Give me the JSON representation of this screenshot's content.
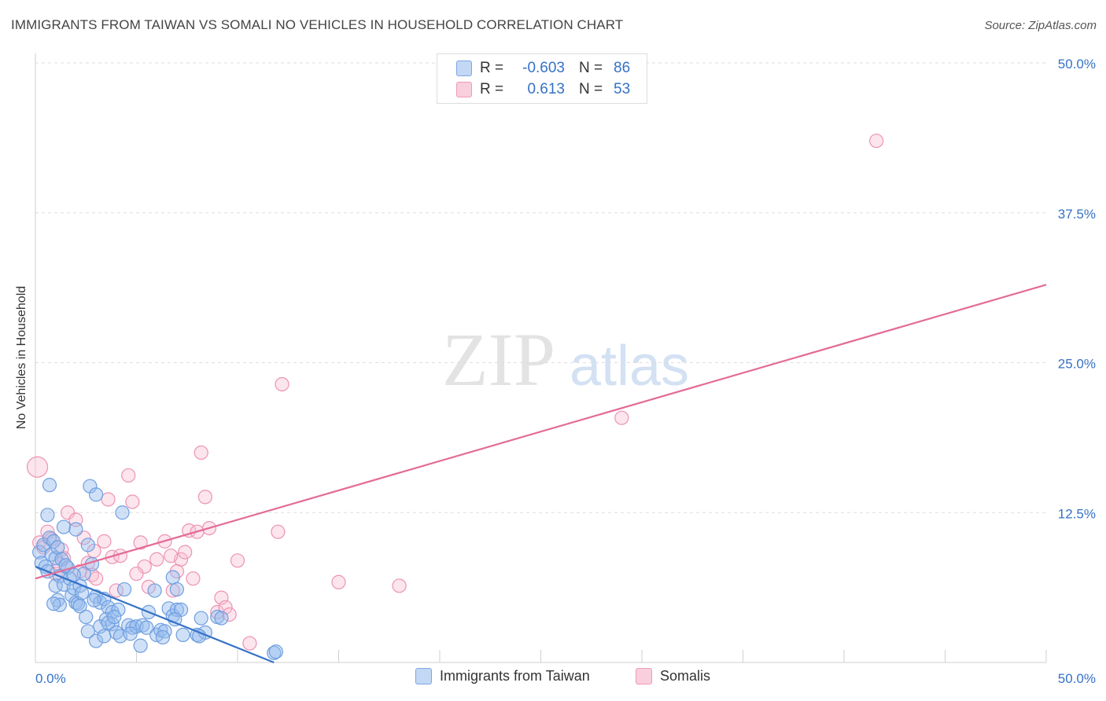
{
  "title": "IMMIGRANTS FROM TAIWAN VS SOMALI NO VEHICLES IN HOUSEHOLD CORRELATION CHART",
  "source": "Source: ZipAtlas.com",
  "watermark": {
    "zip": "ZIP",
    "atlas": "atlas"
  },
  "legend": {
    "rows": [
      {
        "r_label": "R =",
        "r_value": "-0.603",
        "n_label": "N =",
        "n_value": "86"
      },
      {
        "r_label": "R =",
        "r_value": "0.613",
        "n_label": "N =",
        "n_value": "53"
      }
    ]
  },
  "chart_data": {
    "type": "scatter",
    "title": "IMMIGRANTS FROM TAIWAN VS SOMALI NO VEHICLES IN HOUSEHOLD CORRELATION CHART",
    "xlabel": "",
    "ylabel": "No Vehicles in Household",
    "xlim": [
      0,
      50
    ],
    "ylim": [
      0,
      50
    ],
    "x_tick_labels": [
      "0.0%",
      "50.0%"
    ],
    "y_tick_labels": [
      "12.5%",
      "25.0%",
      "37.5%",
      "50.0%"
    ],
    "y_ticks": [
      12.5,
      25.0,
      37.5,
      50.0
    ],
    "grid": true,
    "legend_position": "bottom",
    "colors": {
      "taiwan": "#5b8fd9",
      "somalis": "#ee8fb0",
      "taiwan_line": "#3572c6",
      "somalis_line": "#e36b97",
      "axis_text": "#3572c6"
    },
    "series": [
      {
        "name": "Immigrants from Taiwan",
        "r": -0.603,
        "n": 86,
        "trend": {
          "x0": 0.0,
          "y0": 8.0,
          "x1": 11.8,
          "y1": 0.0
        },
        "points": [
          [
            0.2,
            9.2
          ],
          [
            0.3,
            8.3
          ],
          [
            0.4,
            9.8
          ],
          [
            0.5,
            8.0
          ],
          [
            0.6,
            7.6
          ],
          [
            0.7,
            10.4
          ],
          [
            0.8,
            9.0
          ],
          [
            0.6,
            12.3
          ],
          [
            0.7,
            14.8
          ],
          [
            0.9,
            10.1
          ],
          [
            1.0,
            8.7
          ],
          [
            1.1,
            9.6
          ],
          [
            1.2,
            7.2
          ],
          [
            1.3,
            8.6
          ],
          [
            1.0,
            6.4
          ],
          [
            1.1,
            5.2
          ],
          [
            1.2,
            4.8
          ],
          [
            1.4,
            6.5
          ],
          [
            1.4,
            11.3
          ],
          [
            1.6,
            7.9
          ],
          [
            1.7,
            7.0
          ],
          [
            1.8,
            5.6
          ],
          [
            1.9,
            6.2
          ],
          [
            2.0,
            5.0
          ],
          [
            2.1,
            4.9
          ],
          [
            2.2,
            6.4
          ],
          [
            2.0,
            11.1
          ],
          [
            2.2,
            4.7
          ],
          [
            2.4,
            7.4
          ],
          [
            2.6,
            9.8
          ],
          [
            2.8,
            8.2
          ],
          [
            3.0,
            5.5
          ],
          [
            2.5,
            3.8
          ],
          [
            2.7,
            14.7
          ],
          [
            3.0,
            14.0
          ],
          [
            3.2,
            5.0
          ],
          [
            3.4,
            5.3
          ],
          [
            3.6,
            4.6
          ],
          [
            3.8,
            4.2
          ],
          [
            3.5,
            3.6
          ],
          [
            3.2,
            3.0
          ],
          [
            3.0,
            1.8
          ],
          [
            3.4,
            2.2
          ],
          [
            3.8,
            3.2
          ],
          [
            4.0,
            2.5
          ],
          [
            4.2,
            2.2
          ],
          [
            4.4,
            6.1
          ],
          [
            4.6,
            3.1
          ],
          [
            4.8,
            2.9
          ],
          [
            5.0,
            3.0
          ],
          [
            5.3,
            3.1
          ],
          [
            5.2,
            1.4
          ],
          [
            5.6,
            4.2
          ],
          [
            6.0,
            2.3
          ],
          [
            6.2,
            2.7
          ],
          [
            6.4,
            2.6
          ],
          [
            6.6,
            4.5
          ],
          [
            6.8,
            3.9
          ],
          [
            7.0,
            4.4
          ],
          [
            7.2,
            4.4
          ],
          [
            6.8,
            7.1
          ],
          [
            7.0,
            6.1
          ],
          [
            7.3,
            2.3
          ],
          [
            8.0,
            2.3
          ],
          [
            8.2,
            3.7
          ],
          [
            8.4,
            2.5
          ],
          [
            9.0,
            3.8
          ],
          [
            9.2,
            3.7
          ],
          [
            11.8,
            0.8
          ],
          [
            11.9,
            0.9
          ],
          [
            4.3,
            12.5
          ],
          [
            1.5,
            8.1
          ],
          [
            2.3,
            5.8
          ],
          [
            2.9,
            5.2
          ],
          [
            3.6,
            3.3
          ],
          [
            4.1,
            4.4
          ],
          [
            5.9,
            6.0
          ],
          [
            6.9,
            3.6
          ],
          [
            8.1,
            2.2
          ],
          [
            3.9,
            3.8
          ],
          [
            1.9,
            7.3
          ],
          [
            2.6,
            2.6
          ],
          [
            5.5,
            2.9
          ],
          [
            6.3,
            2.1
          ],
          [
            4.7,
            2.4
          ],
          [
            0.9,
            4.9
          ]
        ]
      },
      {
        "name": "Somalis",
        "r": 0.613,
        "n": 53,
        "trend": {
          "x0": 0.0,
          "y0": 7.0,
          "x1": 50.0,
          "y1": 31.5
        },
        "points": [
          [
            0.1,
            16.3
          ],
          [
            0.2,
            10.0
          ],
          [
            0.4,
            9.6
          ],
          [
            0.6,
            10.9
          ],
          [
            0.8,
            10.3
          ],
          [
            1.0,
            7.4
          ],
          [
            1.3,
            9.4
          ],
          [
            1.4,
            8.7
          ],
          [
            1.6,
            12.5
          ],
          [
            2.0,
            11.9
          ],
          [
            2.2,
            7.6
          ],
          [
            2.4,
            10.4
          ],
          [
            2.6,
            8.3
          ],
          [
            2.8,
            7.3
          ],
          [
            3.0,
            7.0
          ],
          [
            3.4,
            10.1
          ],
          [
            3.6,
            13.6
          ],
          [
            3.8,
            8.8
          ],
          [
            4.0,
            6.0
          ],
          [
            4.2,
            8.9
          ],
          [
            4.6,
            15.6
          ],
          [
            4.8,
            13.4
          ],
          [
            5.2,
            10.0
          ],
          [
            5.4,
            8.0
          ],
          [
            5.6,
            6.3
          ],
          [
            6.0,
            8.6
          ],
          [
            6.4,
            10.1
          ],
          [
            6.8,
            6.0
          ],
          [
            7.0,
            7.6
          ],
          [
            7.2,
            8.6
          ],
          [
            7.4,
            9.2
          ],
          [
            7.6,
            11.0
          ],
          [
            7.8,
            7.0
          ],
          [
            8.0,
            10.9
          ],
          [
            8.2,
            17.5
          ],
          [
            8.4,
            13.8
          ],
          [
            8.6,
            11.2
          ],
          [
            9.0,
            4.2
          ],
          [
            9.2,
            5.4
          ],
          [
            9.4,
            4.6
          ],
          [
            9.6,
            4.0
          ],
          [
            10.0,
            8.5
          ],
          [
            10.6,
            1.6
          ],
          [
            12.0,
            10.9
          ],
          [
            12.2,
            23.2
          ],
          [
            15.0,
            6.7
          ],
          [
            18.0,
            6.4
          ],
          [
            29.0,
            20.4
          ],
          [
            41.6,
            43.5
          ],
          [
            1.2,
            8.2
          ],
          [
            2.9,
            9.3
          ],
          [
            5.0,
            7.4
          ],
          [
            6.7,
            8.9
          ]
        ]
      }
    ]
  },
  "bottom_legend": [
    "Immigrants from Taiwan",
    "Somalis"
  ]
}
